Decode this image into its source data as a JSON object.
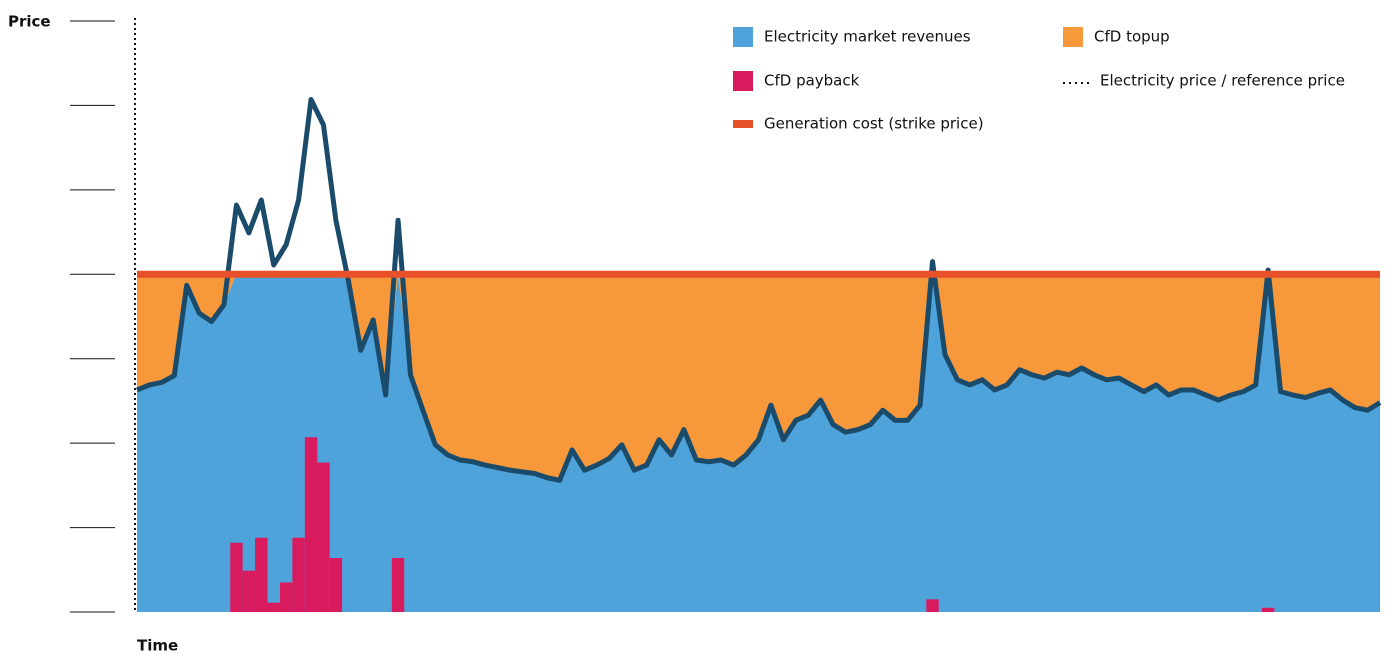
{
  "chart_data": {
    "type": "price-area",
    "y_label": "Price",
    "x_label": "Time",
    "ylim": [
      0,
      7
    ],
    "yticks": [
      0,
      1,
      2,
      3,
      4,
      5,
      6,
      7
    ],
    "strike_price": 4,
    "revenue_color": "#4fa3db",
    "topup_color": "#f7983a",
    "payback_color": "#d81b5f",
    "strike_color": "#e8502a",
    "price_line_color": "#1b4b6b",
    "legend": [
      {
        "name": "Electricity market revenues",
        "color": "#4fa3db",
        "kind": "box"
      },
      {
        "name": "CfD topup",
        "color": "#f7983a",
        "kind": "box"
      },
      {
        "name": "CfD payback",
        "color": "#d81b5f",
        "kind": "box"
      },
      {
        "name": "Electricity price / reference price",
        "color": "#111111",
        "kind": "dots"
      },
      {
        "name": "Generation cost (strike price)",
        "color": "#e8502a",
        "kind": "bar"
      }
    ],
    "values": [
      2.63,
      2.69,
      2.72,
      2.8,
      3.87,
      3.54,
      3.44,
      3.64,
      4.82,
      4.49,
      4.88,
      4.11,
      4.35,
      4.88,
      6.07,
      5.77,
      4.64,
      3.93,
      3.1,
      3.46,
      2.57,
      4.64,
      2.81,
      2.39,
      1.98,
      1.86,
      1.8,
      1.78,
      1.74,
      1.71,
      1.68,
      1.66,
      1.64,
      1.59,
      1.56,
      1.92,
      1.68,
      1.74,
      1.82,
      1.98,
      1.68,
      1.74,
      2.04,
      1.86,
      2.16,
      1.8,
      1.78,
      1.8,
      1.74,
      1.86,
      2.04,
      2.45,
      2.04,
      2.27,
      2.33,
      2.51,
      2.22,
      2.13,
      2.16,
      2.22,
      2.39,
      2.27,
      2.27,
      2.45,
      4.15,
      3.05,
      2.75,
      2.69,
      2.75,
      2.63,
      2.69,
      2.87,
      2.81,
      2.77,
      2.84,
      2.81,
      2.89,
      2.81,
      2.75,
      2.77,
      2.69,
      2.61,
      2.69,
      2.57,
      2.63,
      2.63,
      2.57,
      2.51,
      2.57,
      2.61,
      2.69,
      4.05,
      2.61,
      2.57,
      2.54,
      2.59,
      2.63,
      2.51,
      2.42,
      2.39,
      2.48
    ]
  }
}
